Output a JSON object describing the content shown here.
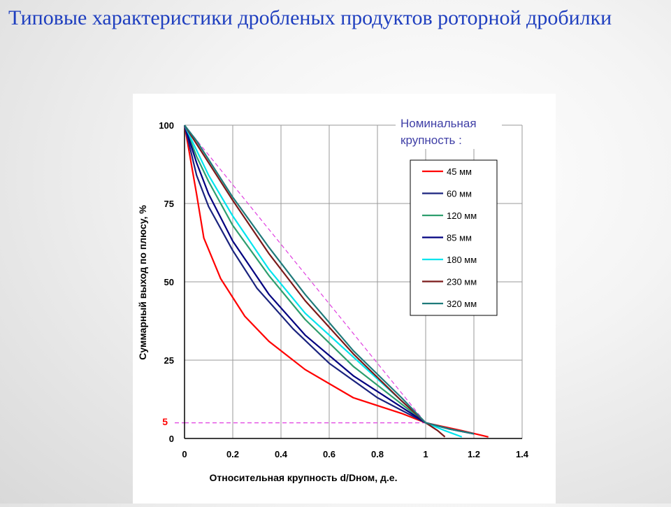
{
  "slide": {
    "title": "Типовые характеристики дробленых продуктов роторной дробилки"
  },
  "chart_data": {
    "type": "line",
    "xlabel": "Относительная крупность d/Dном, д.е.",
    "ylabel": "Суммарный выход по плюсу, %",
    "xlim": [
      0,
      1.4
    ],
    "ylim": [
      0,
      100
    ],
    "x_ticks": [
      "0",
      "0.2",
      "0.4",
      "0.6",
      "0.8",
      "1",
      "1.2",
      "1.4"
    ],
    "y_ticks": [
      "0",
      "25",
      "50",
      "75",
      "100"
    ],
    "grid": true,
    "legend_title": "Номинальная крупность :",
    "legend_position": "top-right",
    "annotations": [
      {
        "text": "5",
        "color": "#ff0000"
      }
    ],
    "series": [
      {
        "name": "45 мм",
        "color": "#ff0000",
        "x": [
          0,
          0.05,
          0.08,
          0.15,
          0.25,
          0.35,
          0.5,
          0.7,
          0.9,
          1.0,
          1.15,
          1.26
        ],
        "y": [
          100,
          78,
          64,
          51,
          39,
          31,
          22,
          13,
          8,
          5,
          2.5,
          0.5
        ]
      },
      {
        "name": "60 мм",
        "color": "#1a237e",
        "x": [
          0,
          0.05,
          0.1,
          0.2,
          0.3,
          0.45,
          0.6,
          0.8,
          1.0,
          1.1,
          1.2
        ],
        "y": [
          100,
          84,
          74,
          60,
          48,
          35,
          24,
          13,
          5,
          3,
          1.5
        ]
      },
      {
        "name": "120 мм",
        "color": "#2e9e6e",
        "x": [
          0,
          0.05,
          0.1,
          0.2,
          0.35,
          0.5,
          0.7,
          0.9,
          1.0,
          1.1,
          1.2
        ],
        "y": [
          100,
          90,
          82,
          68,
          52,
          38,
          23,
          11,
          5,
          3,
          1.5
        ]
      },
      {
        "name": "85 мм",
        "color": "#000080",
        "x": [
          0,
          0.05,
          0.1,
          0.2,
          0.35,
          0.5,
          0.7,
          0.9,
          1.0,
          1.1,
          1.2
        ],
        "y": [
          100,
          88,
          78,
          63,
          46,
          33,
          20,
          10,
          5,
          3,
          1.5
        ]
      },
      {
        "name": "180 мм",
        "color": "#00e5ee",
        "x": [
          0,
          0.05,
          0.1,
          0.2,
          0.35,
          0.5,
          0.7,
          0.9,
          1.0,
          1.08,
          1.15
        ],
        "y": [
          100,
          92,
          84,
          71,
          54,
          40,
          26,
          12,
          5,
          2.5,
          0.5
        ]
      },
      {
        "name": "230 мм",
        "color": "#7b1a1a",
        "x": [
          0,
          0.05,
          0.1,
          0.2,
          0.35,
          0.5,
          0.7,
          0.9,
          1.0,
          1.05,
          1.08
        ],
        "y": [
          100,
          94,
          88,
          76,
          59,
          44,
          27,
          12,
          5,
          2.5,
          0.5
        ]
      },
      {
        "name": "320 мм",
        "color": "#1f7a7a",
        "x": [
          0,
          0.05,
          0.1,
          0.2,
          0.35,
          0.5,
          0.7,
          0.9,
          1.0,
          1.1,
          1.2
        ],
        "y": [
          100,
          95,
          89,
          77,
          61,
          46,
          28,
          13,
          5,
          3,
          1.5
        ]
      }
    ],
    "reference_lines": [
      {
        "kind": "diagonal",
        "color": "#e040e0",
        "x": [
          0,
          1.0
        ],
        "y": [
          100,
          5
        ]
      },
      {
        "kind": "horizontal",
        "color": "#e040e0",
        "x": [
          0,
          1.0
        ],
        "y": [
          5,
          5
        ]
      }
    ]
  }
}
